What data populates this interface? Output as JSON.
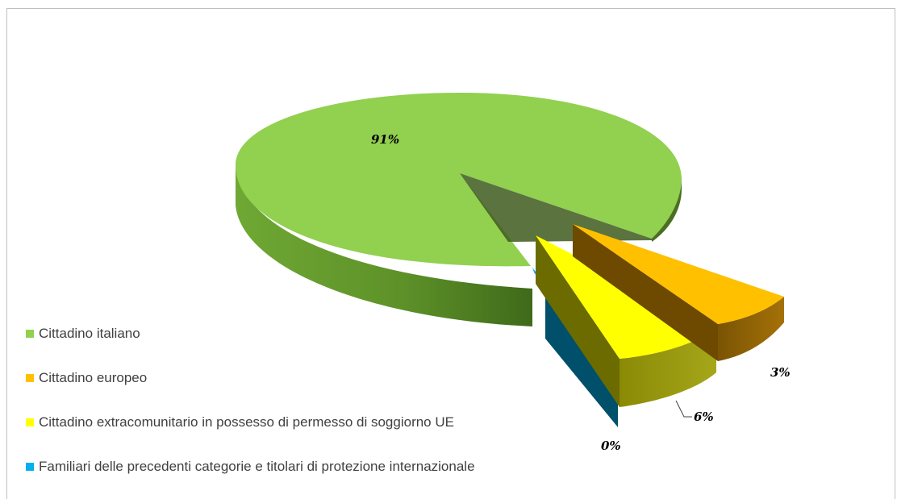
{
  "chart_data": {
    "type": "pie",
    "title": "",
    "categories": [
      "Cittadino italiano",
      "Cittadino europeo",
      "Cittadino extracomunitario in possesso di permesso di soggiorno UE",
      "Familiari delle precedenti categorie e titolari di protezione internazionale"
    ],
    "values": [
      91,
      3,
      6,
      0
    ],
    "labels": [
      "91%",
      "3%",
      "6%",
      "0%"
    ],
    "colors": [
      "#92d050",
      "#ffc000",
      "#ffff00",
      "#00b0f0"
    ],
    "legend_position": "left",
    "style": "3d-exploded"
  }
}
